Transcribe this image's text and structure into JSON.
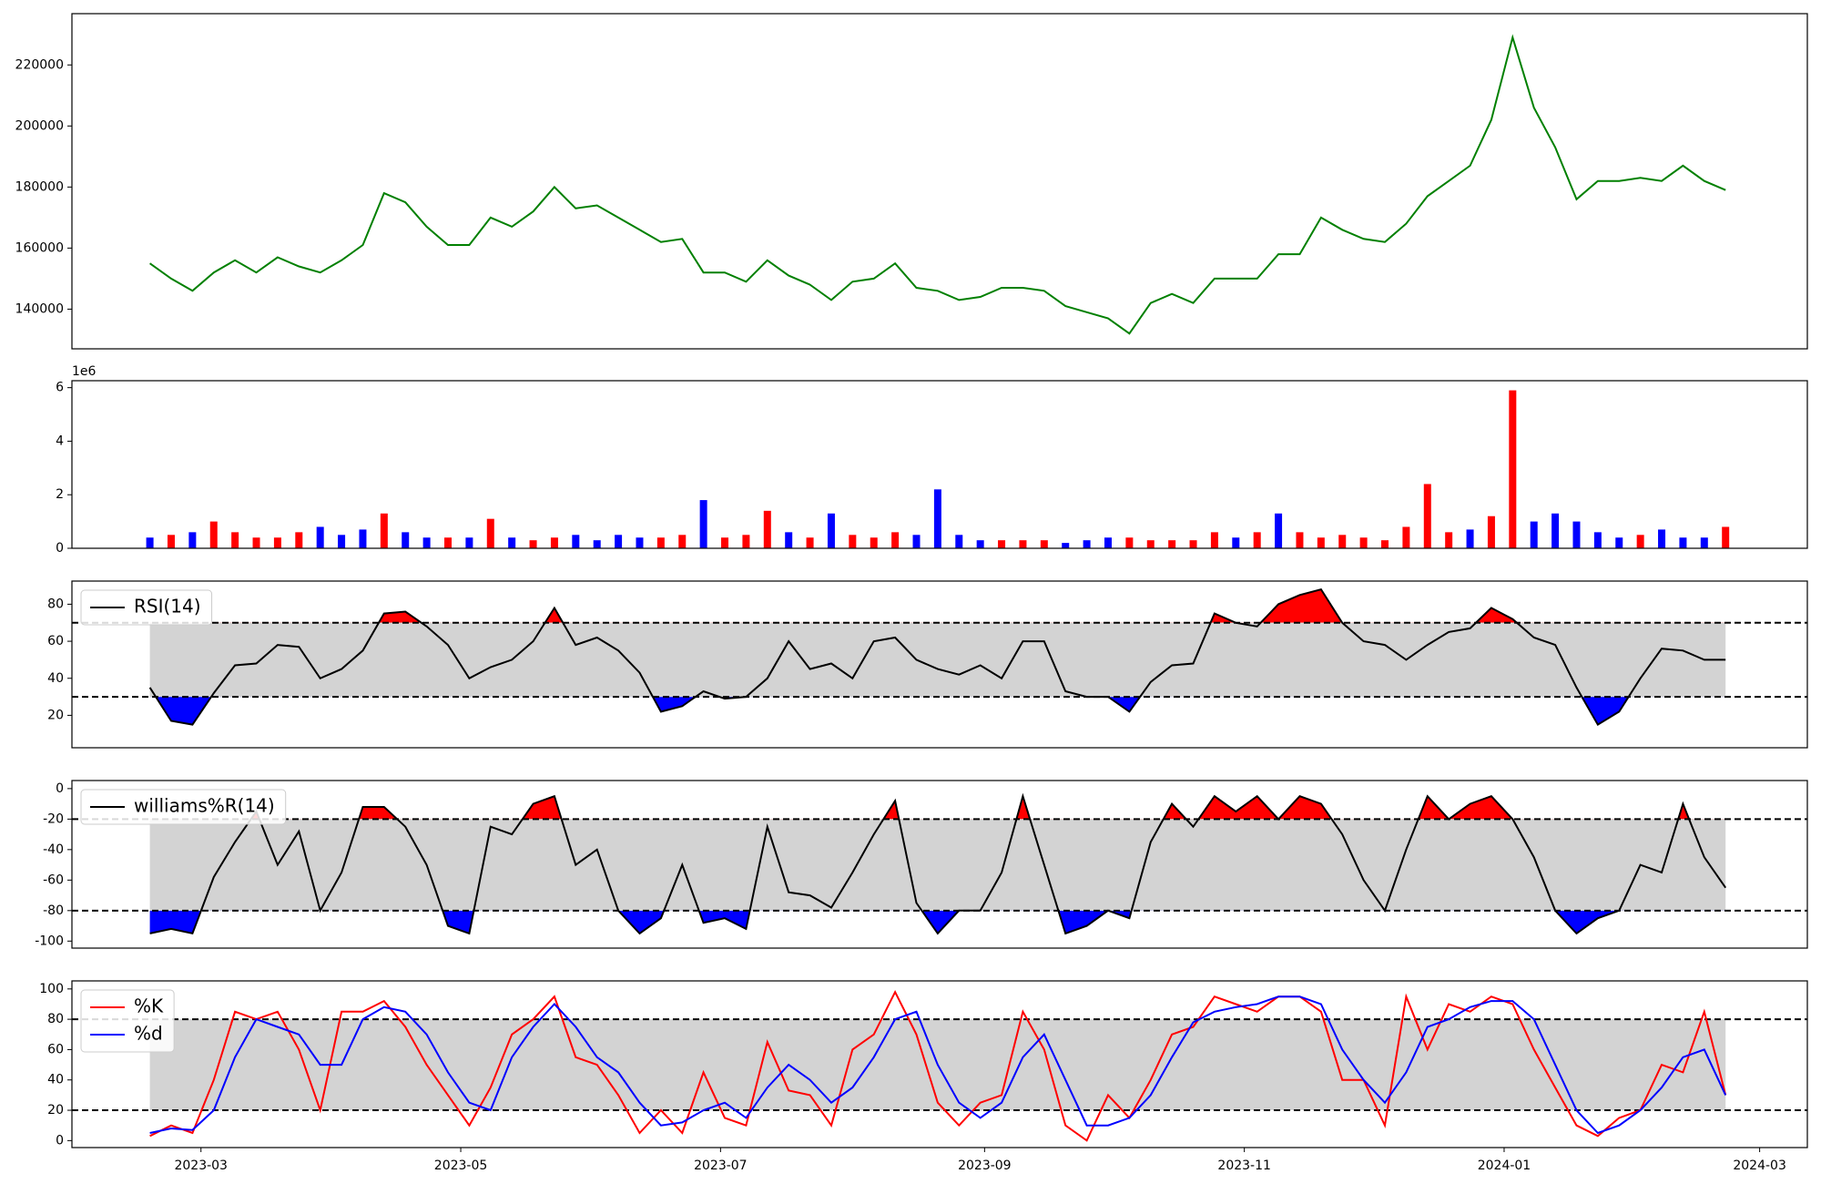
{
  "chart_data": [
    {
      "type": "line",
      "x": [
        47,
        52,
        57,
        62,
        67,
        72,
        77,
        82,
        87,
        92,
        97,
        102,
        107,
        112,
        117,
        122,
        127,
        132,
        137,
        142,
        147,
        152,
        157,
        162,
        167,
        172,
        177,
        182,
        187,
        192,
        197,
        202,
        207,
        212,
        217,
        222,
        227,
        232,
        237,
        242,
        247,
        252,
        257,
        262,
        267,
        272,
        277,
        282,
        287,
        292,
        297,
        302,
        307,
        312,
        317,
        322,
        327,
        332,
        337,
        342,
        347,
        352,
        357,
        362,
        367,
        372,
        377,
        382,
        387,
        392,
        397,
        402,
        407,
        412,
        417
      ],
      "series": [
        {
          "color": "green",
          "values": [
            155000,
            150000,
            146000,
            152000,
            156000,
            152000,
            157000,
            154000,
            152000,
            156000,
            161000,
            178000,
            175000,
            167000,
            161000,
            161000,
            170000,
            167000,
            172000,
            180000,
            173000,
            174000,
            170000,
            166000,
            162000,
            163000,
            152000,
            152000,
            149000,
            156000,
            151000,
            148000,
            143000,
            149000,
            150000,
            155000,
            147000,
            146000,
            143000,
            144000,
            147000,
            147000,
            146000,
            141000,
            139000,
            137000,
            132000,
            142000,
            145000,
            142000,
            150000,
            150000,
            150000,
            158000,
            158000,
            170000,
            166000,
            163000,
            162000,
            168000,
            177000,
            182000,
            187000,
            202000,
            229000,
            206000,
            193000,
            176000,
            182000,
            182000,
            183000,
            182000,
            187000,
            182000,
            179000
          ]
        }
      ],
      "xlim": [
        28.7,
        436.2
      ],
      "ylim": [
        127000,
        236800
      ],
      "yticks": [
        140000,
        160000,
        180000,
        200000,
        220000
      ]
    },
    {
      "type": "bar",
      "x": [
        47,
        52,
        57,
        62,
        67,
        72,
        77,
        82,
        87,
        92,
        97,
        102,
        107,
        112,
        117,
        122,
        127,
        132,
        137,
        142,
        147,
        152,
        157,
        162,
        167,
        172,
        177,
        182,
        187,
        192,
        197,
        202,
        207,
        212,
        217,
        222,
        227,
        232,
        237,
        242,
        247,
        252,
        257,
        262,
        267,
        272,
        277,
        282,
        287,
        292,
        297,
        302,
        307,
        312,
        317,
        322,
        327,
        332,
        337,
        342,
        347,
        352,
        357,
        362,
        367,
        372,
        377,
        382,
        387,
        392,
        397,
        402,
        407,
        412,
        417
      ],
      "values": [
        0.4,
        0.5,
        0.6,
        1.0,
        0.6,
        0.4,
        0.4,
        0.6,
        0.8,
        0.5,
        0.7,
        1.3,
        0.6,
        0.4,
        0.4,
        0.4,
        1.1,
        0.4,
        0.3,
        0.4,
        0.5,
        0.3,
        0.5,
        0.4,
        0.4,
        0.5,
        1.8,
        0.4,
        0.5,
        1.4,
        0.6,
        0.4,
        1.3,
        0.5,
        0.4,
        0.6,
        0.5,
        2.2,
        0.5,
        0.3,
        0.3,
        0.3,
        0.3,
        0.2,
        0.3,
        0.4,
        0.4,
        0.3,
        0.3,
        0.3,
        0.6,
        0.4,
        0.6,
        1.3,
        0.6,
        0.4,
        0.5,
        0.4,
        0.3,
        0.8,
        2.4,
        0.6,
        0.7,
        1.2,
        5.9,
        1.0,
        1.3,
        1.0,
        0.6,
        0.4,
        0.5,
        0.7,
        0.4,
        0.4,
        0.8
      ],
      "colors": [
        "blue",
        "red",
        "blue",
        "red",
        "red",
        "red",
        "red",
        "red",
        "blue",
        "blue",
        "blue",
        "red",
        "blue",
        "blue",
        "red",
        "blue",
        "red",
        "blue",
        "red",
        "red",
        "blue",
        "blue",
        "blue",
        "blue",
        "red",
        "red",
        "blue",
        "red",
        "red",
        "red",
        "blue",
        "red",
        "blue",
        "red",
        "red",
        "red",
        "blue",
        "blue",
        "blue",
        "blue",
        "red",
        "red",
        "red",
        "blue",
        "blue",
        "blue",
        "red",
        "red",
        "red",
        "red",
        "red",
        "blue",
        "red",
        "blue",
        "red",
        "red",
        "red",
        "red",
        "red",
        "red",
        "red",
        "red",
        "blue",
        "red",
        "red",
        "blue",
        "blue",
        "blue",
        "blue",
        "blue",
        "red",
        "blue",
        "blue",
        "blue",
        "red"
      ],
      "offset_label": "1e6",
      "xlim": [
        28.7,
        436.2
      ],
      "ylim": [
        0,
        6.26
      ],
      "yticks": [
        0,
        2,
        4,
        6
      ]
    },
    {
      "type": "line",
      "x": [
        47,
        52,
        57,
        62,
        67,
        72,
        77,
        82,
        87,
        92,
        97,
        102,
        107,
        112,
        117,
        122,
        127,
        132,
        137,
        142,
        147,
        152,
        157,
        162,
        167,
        172,
        177,
        182,
        187,
        192,
        197,
        202,
        207,
        212,
        217,
        222,
        227,
        232,
        237,
        242,
        247,
        252,
        257,
        262,
        267,
        272,
        277,
        282,
        287,
        292,
        297,
        302,
        307,
        312,
        317,
        322,
        327,
        332,
        337,
        342,
        347,
        352,
        357,
        362,
        367,
        372,
        377,
        382,
        387,
        392,
        397,
        402,
        407,
        412,
        417
      ],
      "series": [
        {
          "name": "RSI(14)",
          "color": "black",
          "values": [
            35,
            17,
            15,
            32,
            47,
            48,
            58,
            57,
            40,
            45,
            55,
            75,
            76,
            68,
            58,
            40,
            46,
            50,
            60,
            78,
            58,
            62,
            55,
            43,
            22,
            25,
            33,
            29,
            30,
            40,
            60,
            45,
            48,
            40,
            60,
            62,
            50,
            45,
            42,
            47,
            40,
            60,
            60,
            33,
            30,
            30,
            22,
            38,
            47,
            48,
            75,
            70,
            68,
            80,
            85,
            88,
            70,
            60,
            58,
            50,
            58,
            65,
            67,
            78,
            72,
            62,
            58,
            35,
            15,
            22,
            40,
            56,
            55,
            50,
            50
          ]
        }
      ],
      "upper": 70,
      "lower": 30,
      "band_color": "lightgray",
      "above_color": "red",
      "below_color": "blue",
      "legend": "upper left",
      "xlim": [
        28.7,
        436.2
      ],
      "ylim": [
        2.5,
        92.5
      ],
      "yticks": [
        20,
        40,
        60,
        80
      ]
    },
    {
      "type": "line",
      "x": [
        47,
        52,
        57,
        62,
        67,
        72,
        77,
        82,
        87,
        92,
        97,
        102,
        107,
        112,
        117,
        122,
        127,
        132,
        137,
        142,
        147,
        152,
        157,
        162,
        167,
        172,
        177,
        182,
        187,
        192,
        197,
        202,
        207,
        212,
        217,
        222,
        227,
        232,
        237,
        242,
        247,
        252,
        257,
        262,
        267,
        272,
        277,
        282,
        287,
        292,
        297,
        302,
        307,
        312,
        317,
        322,
        327,
        332,
        337,
        342,
        347,
        352,
        357,
        362,
        367,
        372,
        377,
        382,
        387,
        392,
        397,
        402,
        407,
        412,
        417
      ],
      "series": [
        {
          "name": "williams%R(14)",
          "color": "black",
          "values": [
            -95,
            -92,
            -95,
            -58,
            -35,
            -15,
            -50,
            -28,
            -80,
            -55,
            -12,
            -12,
            -25,
            -50,
            -90,
            -95,
            -25,
            -30,
            -10,
            -5,
            -50,
            -40,
            -80,
            -95,
            -85,
            -50,
            -88,
            -85,
            -92,
            -25,
            -68,
            -70,
            -78,
            -55,
            -30,
            -8,
            -75,
            -95,
            -80,
            -80,
            -55,
            -5,
            -50,
            -95,
            -90,
            -80,
            -85,
            -35,
            -10,
            -25,
            -5,
            -15,
            -5,
            -20,
            -5,
            -10,
            -30,
            -60,
            -80,
            -40,
            -5,
            -20,
            -10,
            -5,
            -20,
            -45,
            -80,
            -95,
            -85,
            -80,
            -50,
            -55,
            -10,
            -45,
            -65
          ]
        }
      ],
      "upper": -20,
      "lower": -80,
      "band_color": "lightgray",
      "above_color": "red",
      "below_color": "blue",
      "legend": "upper left",
      "xlim": [
        28.7,
        436.2
      ],
      "ylim": [
        -104.6,
        5.3
      ],
      "yticks": [
        -100,
        -80,
        -60,
        -40,
        -20,
        0
      ]
    },
    {
      "type": "line",
      "x": [
        47,
        52,
        57,
        62,
        67,
        72,
        77,
        82,
        87,
        92,
        97,
        102,
        107,
        112,
        117,
        122,
        127,
        132,
        137,
        142,
        147,
        152,
        157,
        162,
        167,
        172,
        177,
        182,
        187,
        192,
        197,
        202,
        207,
        212,
        217,
        222,
        227,
        232,
        237,
        242,
        247,
        252,
        257,
        262,
        267,
        272,
        277,
        282,
        287,
        292,
        297,
        302,
        307,
        312,
        317,
        322,
        327,
        332,
        337,
        342,
        347,
        352,
        357,
        362,
        367,
        372,
        377,
        382,
        387,
        392,
        397,
        402,
        407,
        412,
        417
      ],
      "series": [
        {
          "name": "%K",
          "color": "red",
          "values": [
            3,
            10,
            5,
            40,
            85,
            80,
            85,
            60,
            20,
            85,
            85,
            92,
            75,
            50,
            30,
            10,
            35,
            70,
            80,
            95,
            55,
            50,
            30,
            5,
            20,
            5,
            45,
            15,
            10,
            65,
            33,
            30,
            10,
            60,
            70,
            98,
            70,
            25,
            10,
            25,
            30,
            85,
            60,
            10,
            0,
            30,
            15,
            40,
            70,
            75,
            95,
            90,
            85,
            95,
            95,
            85,
            40,
            40,
            10,
            95,
            60,
            90,
            85,
            95,
            90,
            60,
            35,
            10,
            3,
            15,
            20,
            50,
            45,
            85,
            30
          ]
        },
        {
          "name": "%d",
          "color": "blue",
          "values": [
            5,
            8,
            7,
            20,
            55,
            80,
            75,
            70,
            50,
            50,
            80,
            88,
            85,
            70,
            45,
            25,
            20,
            55,
            75,
            90,
            75,
            55,
            45,
            25,
            10,
            12,
            20,
            25,
            15,
            35,
            50,
            40,
            25,
            35,
            55,
            80,
            85,
            50,
            25,
            15,
            25,
            55,
            70,
            40,
            10,
            10,
            15,
            30,
            55,
            78,
            85,
            88,
            90,
            95,
            95,
            90,
            60,
            40,
            25,
            45,
            75,
            80,
            88,
            92,
            92,
            80,
            50,
            20,
            5,
            10,
            20,
            35,
            55,
            60,
            30
          ]
        }
      ],
      "upper": 80,
      "lower": 20,
      "band_color": "lightgray",
      "legend": "upper left",
      "xlim": [
        28.7,
        436.2
      ],
      "ylim": [
        -4.6,
        105.3
      ],
      "yticks": [
        0,
        20,
        40,
        60,
        80,
        100
      ],
      "xticks": [
        {
          "value": 59,
          "label": "2023-03"
        },
        {
          "value": 120,
          "label": "2023-05"
        },
        {
          "value": 181,
          "label": "2023-07"
        },
        {
          "value": 243,
          "label": "2023-09"
        },
        {
          "value": 304,
          "label": "2023-11"
        },
        {
          "value": 365,
          "label": "2024-01"
        },
        {
          "value": 425,
          "label": "2024-03"
        }
      ]
    }
  ]
}
